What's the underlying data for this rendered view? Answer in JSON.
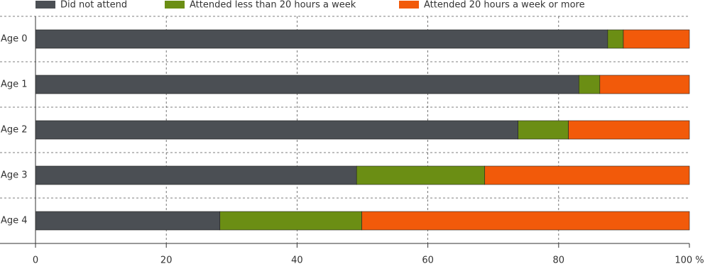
{
  "chart_data": {
    "type": "stacked_barh",
    "categories": [
      "Age 0",
      "Age 1",
      "Age 2",
      "Age 3",
      "Age 4"
    ],
    "series": [
      {
        "name": "Did not attend",
        "color": "#4b4f54",
        "values": [
          87.5,
          83.1,
          73.8,
          49.1,
          28.2
        ]
      },
      {
        "name": "Attended less than 20 hours a week",
        "color": "#6b8e14",
        "values": [
          2.4,
          3.2,
          7.7,
          19.6,
          21.7
        ]
      },
      {
        "name": "Attended 20 hours a week or more",
        "color": "#f25a0a",
        "values": [
          10.1,
          13.7,
          18.5,
          31.3,
          50.1
        ]
      }
    ],
    "xlim": [
      0,
      100
    ],
    "xticks": [
      0,
      20,
      40,
      60,
      80,
      {
        "value": 100,
        "label": "100 %"
      }
    ],
    "grid": true
  }
}
